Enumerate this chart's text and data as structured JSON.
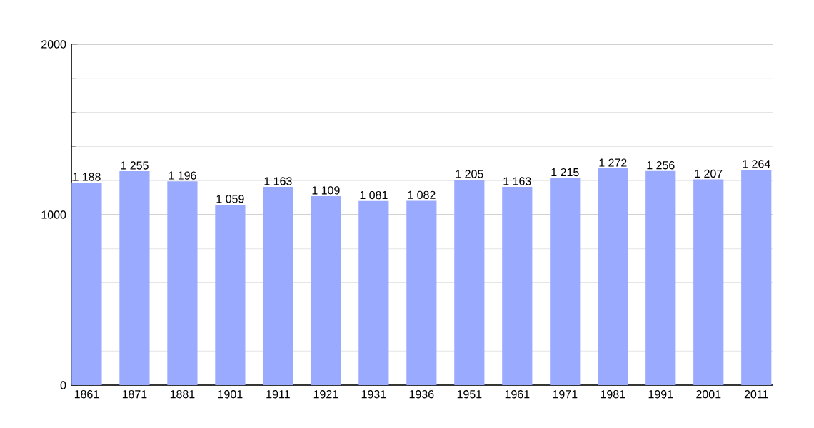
{
  "chart_data": {
    "type": "bar",
    "categories": [
      "1861",
      "1871",
      "1881",
      "1901",
      "1911",
      "1921",
      "1931",
      "1936",
      "1951",
      "1961",
      "1971",
      "1981",
      "1991",
      "2001",
      "2011"
    ],
    "values": [
      1188,
      1255,
      1196,
      1059,
      1163,
      1109,
      1081,
      1082,
      1205,
      1163,
      1215,
      1272,
      1256,
      1207,
      1264
    ],
    "value_labels": [
      "1 188",
      "1 255",
      "1 196",
      "1 059",
      "1 163",
      "1 109",
      "1 081",
      "1 082",
      "1 205",
      "1 163",
      "1 215",
      "1 272",
      "1 256",
      "1 207",
      "1 264"
    ],
    "color": "#99aaff",
    "ylim": [
      0,
      2000
    ],
    "yticks": [
      0,
      1000,
      2000
    ],
    "grid": "y"
  }
}
